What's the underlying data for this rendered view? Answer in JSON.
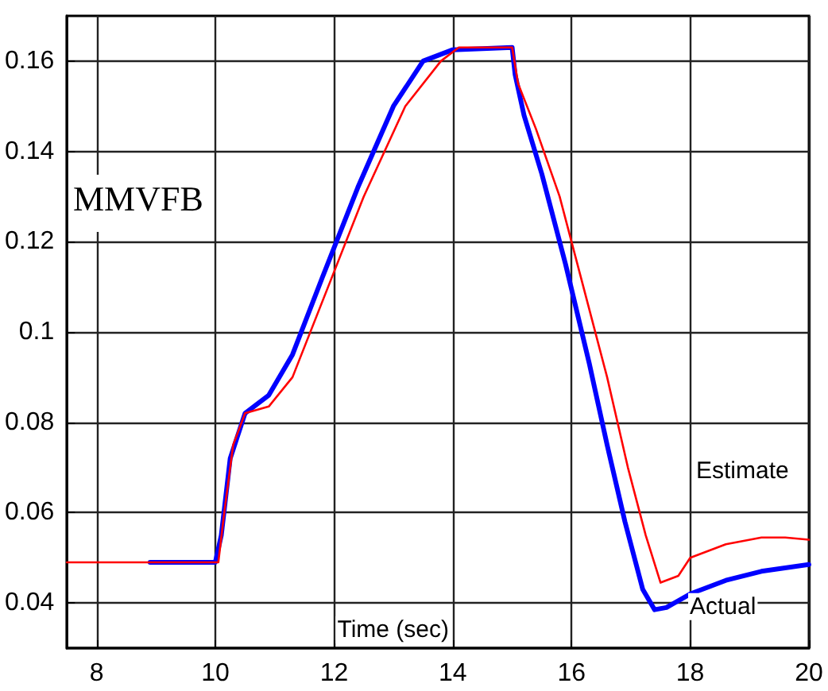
{
  "chart_data": {
    "type": "line",
    "xlabel": "Time (sec)",
    "annotations": [
      "MMVFB"
    ],
    "xlim": [
      7.5,
      20
    ],
    "xticks": [
      8,
      10,
      12,
      14,
      16,
      18,
      20
    ],
    "ylim": [
      0.03,
      0.17
    ],
    "yticks": [
      0.04,
      0.06,
      0.08,
      0.1,
      0.12,
      0.14,
      0.16
    ],
    "grid": true,
    "legend": false,
    "marker": "none",
    "line_style": "solid",
    "series": [
      {
        "name": "Actual",
        "color": "#0000ff",
        "x": [
          8.9,
          10.0,
          10.1,
          10.25,
          10.5,
          10.9,
          11.3,
          11.8,
          12.4,
          13.0,
          13.5,
          14.0,
          15.0,
          15.05,
          15.2,
          15.5,
          15.9,
          16.3,
          16.6,
          16.9,
          17.2,
          17.4,
          17.6,
          18.0,
          18.6,
          19.2,
          20.0
        ],
        "values": [
          0.049,
          0.049,
          0.055,
          0.072,
          0.082,
          0.086,
          0.095,
          0.112,
          0.132,
          0.15,
          0.16,
          0.1625,
          0.163,
          0.157,
          0.148,
          0.135,
          0.115,
          0.093,
          0.075,
          0.058,
          0.043,
          0.0385,
          0.039,
          0.042,
          0.045,
          0.047,
          0.0485
        ]
      },
      {
        "name": "Estimate",
        "color": "#ff0000",
        "x": [
          7.5,
          10.05,
          10.15,
          10.3,
          10.5,
          10.9,
          11.3,
          11.9,
          12.5,
          13.2,
          13.8,
          14.1,
          15.0,
          15.1,
          15.4,
          15.8,
          16.2,
          16.6,
          16.95,
          17.25,
          17.5,
          17.8,
          18.0,
          18.6,
          19.2,
          19.6,
          20.0
        ],
        "values": [
          0.049,
          0.049,
          0.06,
          0.075,
          0.082,
          0.0835,
          0.09,
          0.11,
          0.13,
          0.15,
          0.16,
          0.163,
          0.163,
          0.155,
          0.145,
          0.13,
          0.11,
          0.09,
          0.07,
          0.055,
          0.0445,
          0.046,
          0.05,
          0.053,
          0.0545,
          0.0545,
          0.054
        ]
      }
    ]
  }
}
